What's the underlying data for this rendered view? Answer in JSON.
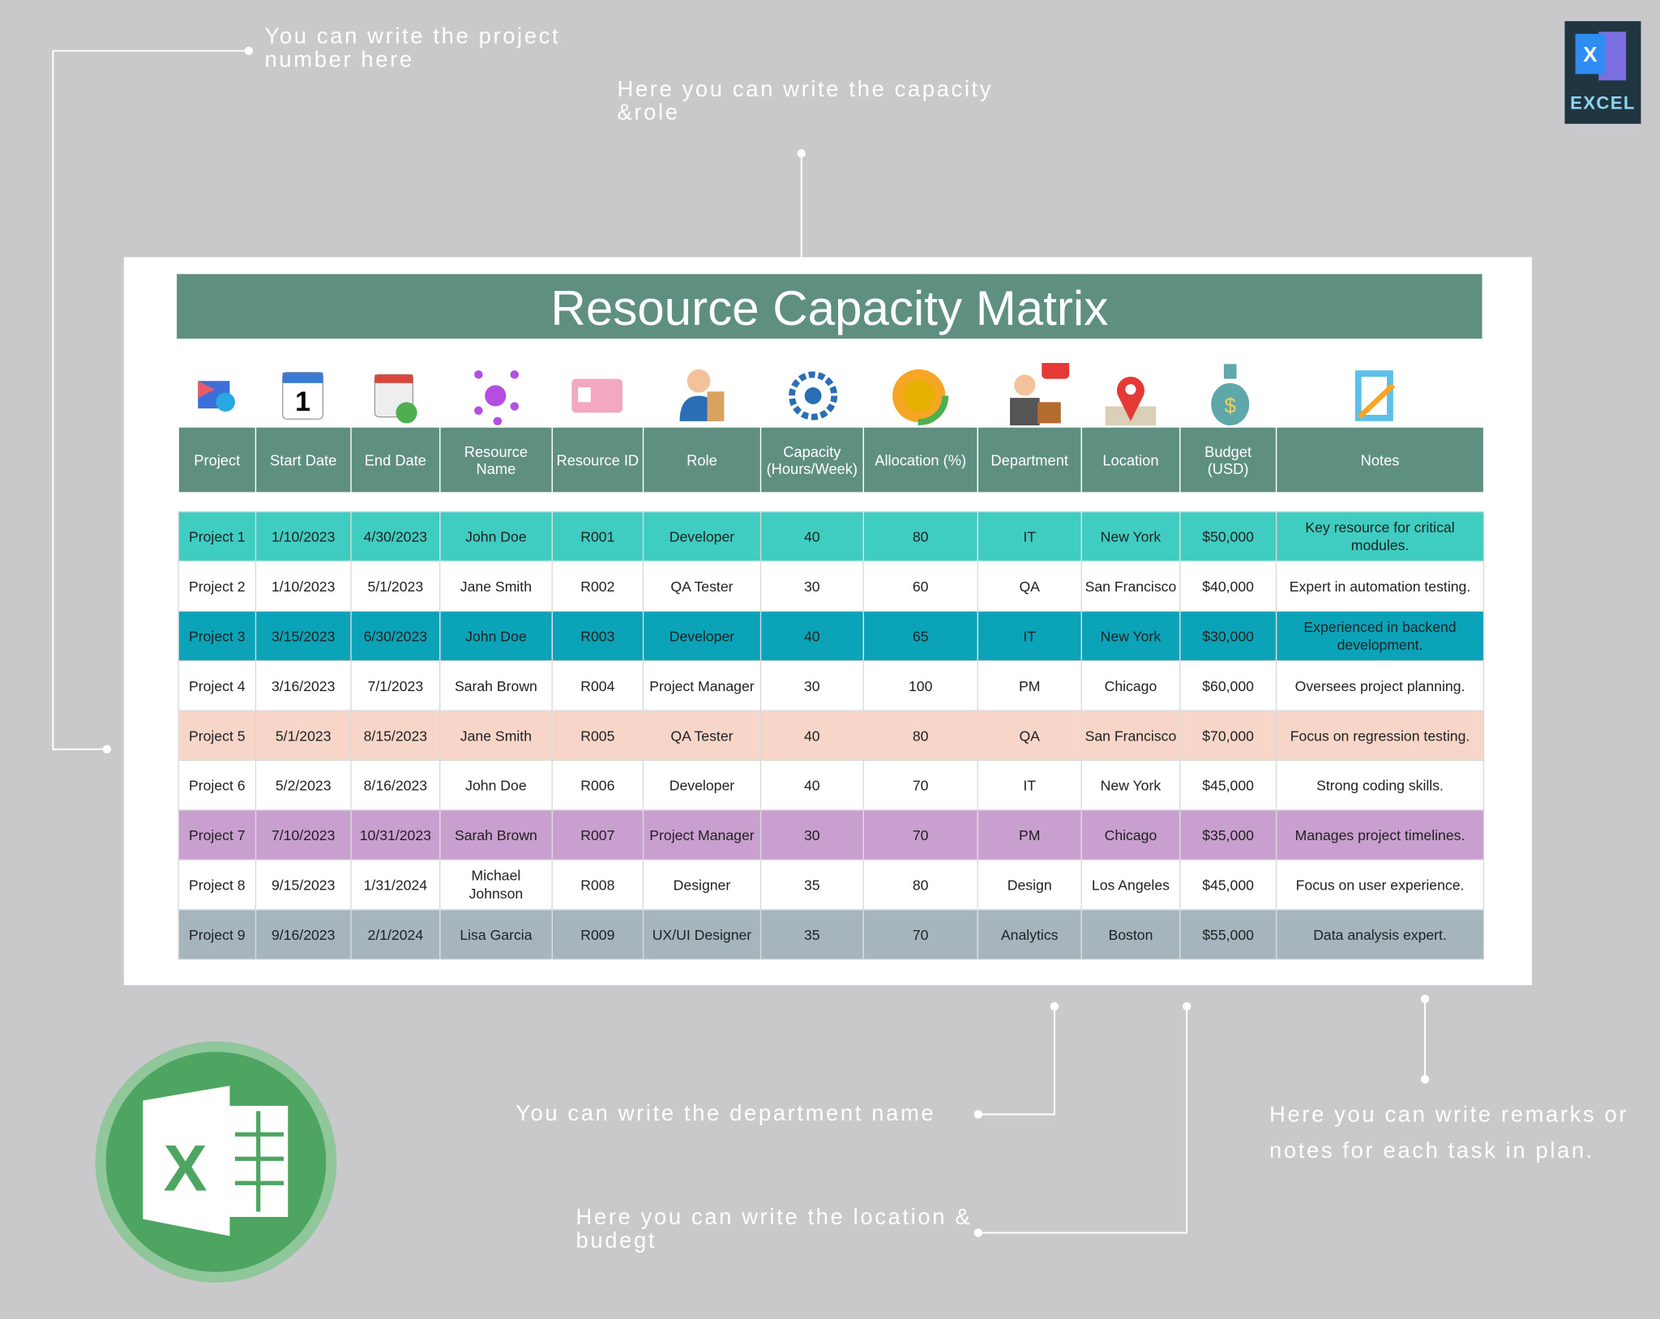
{
  "annotations": [
    "You can write the project number here",
    "Here you can write the capacity &role",
    "You can write the department name",
    "Here you can write the location & budegt",
    "Here you can write remarks or notes for each task in plan."
  ],
  "badge": "EXCEL",
  "title": "Resource Capacity Matrix",
  "table": {
    "headers": [
      "Project",
      "Start Date",
      "End Date",
      "Resource Name",
      "Resource ID",
      "Role",
      "Capacity (Hours/Week)",
      "Allocation (%)",
      "Department",
      "Location",
      "Budget (USD)",
      "Notes"
    ],
    "rows": [
      [
        "Project 1",
        "1/10/2023",
        "4/30/2023",
        "John Doe",
        "R001",
        "Developer",
        "40",
        "80",
        "IT",
        "New York",
        "$50,000",
        "Key resource for critical modules."
      ],
      [
        "Project 2",
        "1/10/2023",
        "5/1/2023",
        "Jane Smith",
        "R002",
        "QA Tester",
        "30",
        "60",
        "QA",
        "San Francisco",
        "$40,000",
        "Expert in automation testing."
      ],
      [
        "Project 3",
        "3/15/2023",
        "6/30/2023",
        "John Doe",
        "R003",
        "Developer",
        "40",
        "65",
        "IT",
        "New York",
        "$30,000",
        "Experienced in backend development."
      ],
      [
        "Project 4",
        "3/16/2023",
        "7/1/2023",
        "Sarah Brown",
        "R004",
        "Project Manager",
        "30",
        "100",
        "PM",
        "Chicago",
        "$60,000",
        "Oversees project planning."
      ],
      [
        "Project 5",
        "5/1/2023",
        "8/15/2023",
        "Jane Smith",
        "R005",
        "QA Tester",
        "40",
        "80",
        "QA",
        "San Francisco",
        "$70,000",
        "Focus on regression testing."
      ],
      [
        "Project 6",
        "5/2/2023",
        "8/16/2023",
        "John Doe",
        "R006",
        "Developer",
        "40",
        "70",
        "IT",
        "New York",
        "$45,000",
        "Strong coding skills."
      ],
      [
        "Project 7",
        "7/10/2023",
        "10/31/2023",
        "Sarah Brown",
        "R007",
        "Project Manager",
        "30",
        "70",
        "PM",
        "Chicago",
        "$35,000",
        "Manages project timelines."
      ],
      [
        "Project 8",
        "9/15/2023",
        "1/31/2024",
        "Michael Johnson",
        "R008",
        "Designer",
        "35",
        "80",
        "Design",
        "Los Angeles",
        "$45,000",
        "Focus on user experience."
      ],
      [
        "Project 9",
        "9/16/2023",
        "2/1/2024",
        "Lisa Garcia",
        "R009",
        "UX/UI Designer",
        "35",
        "70",
        "Analytics",
        "Boston",
        "$55,000",
        "Data analysis expert."
      ]
    ]
  }
}
